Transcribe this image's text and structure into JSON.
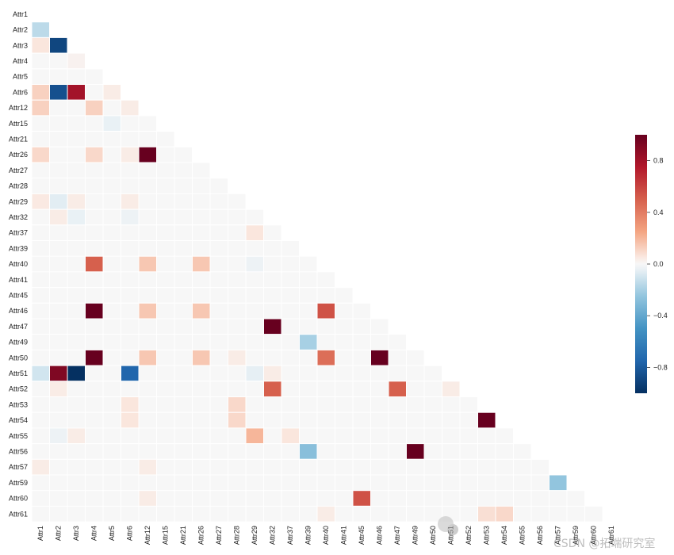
{
  "chart_data": {
    "type": "heatmap",
    "title": "",
    "xlabel": "",
    "ylabel": "",
    "variables": [
      "Attr1",
      "Attr2",
      "Attr3",
      "Attr4",
      "Attr5",
      "Attr6",
      "Attr12",
      "Attr15",
      "Attr21",
      "Attr26",
      "Attr27",
      "Attr28",
      "Attr29",
      "Attr32",
      "Attr37",
      "Attr39",
      "Attr40",
      "Attr41",
      "Attr45",
      "Attr46",
      "Attr47",
      "Attr49",
      "Attr50",
      "Attr51",
      "Attr52",
      "Attr53",
      "Attr54",
      "Attr55",
      "Attr56",
      "Attr57",
      "Attr59",
      "Attr60",
      "Attr61"
    ],
    "mask": "upper-triangle-including-diagonal",
    "colormap": "RdBu_r",
    "vmin": -1,
    "vmax": 1,
    "colorbar_ticks": [
      0.8,
      0.4,
      0.0,
      -0.4,
      -0.8
    ],
    "colorbar_tick_labels": [
      "0.8",
      "0.4",
      "0.0",
      "−0.4",
      "−0.8"
    ],
    "default_value": 0.0,
    "cells": [
      [
        "Attr2",
        "Attr1",
        -0.15
      ],
      [
        "Attr3",
        "Attr1",
        0.06
      ],
      [
        "Attr3",
        "Attr2",
        -0.9
      ],
      [
        "Attr3",
        "Attr4",
        0.02
      ],
      [
        "Attr6",
        "Attr1",
        0.12
      ],
      [
        "Attr6",
        "Attr2",
        -0.85
      ],
      [
        "Attr6",
        "Attr3",
        0.8
      ],
      [
        "Attr6",
        "Attr5",
        0.04
      ],
      [
        "Attr12",
        "Attr1",
        0.12
      ],
      [
        "Attr12",
        "Attr4",
        0.12
      ],
      [
        "Attr12",
        "Attr6",
        0.04
      ],
      [
        "Attr15",
        "Attr5",
        -0.04
      ],
      [
        "Attr26",
        "Attr1",
        0.1
      ],
      [
        "Attr26",
        "Attr4",
        0.1
      ],
      [
        "Attr26",
        "Attr6",
        0.04
      ],
      [
        "Attr26",
        "Attr12",
        1.0
      ],
      [
        "Attr29",
        "Attr1",
        0.05
      ],
      [
        "Attr29",
        "Attr2",
        -0.06
      ],
      [
        "Attr29",
        "Attr3",
        0.04
      ],
      [
        "Attr29",
        "Attr6",
        0.04
      ],
      [
        "Attr32",
        "Attr2",
        0.04
      ],
      [
        "Attr32",
        "Attr3",
        -0.04
      ],
      [
        "Attr32",
        "Attr6",
        -0.03
      ],
      [
        "Attr37",
        "Attr29",
        0.06
      ],
      [
        "Attr40",
        "Attr4",
        0.5
      ],
      [
        "Attr40",
        "Attr12",
        0.15
      ],
      [
        "Attr40",
        "Attr26",
        0.15
      ],
      [
        "Attr40",
        "Attr29",
        -0.03
      ],
      [
        "Attr46",
        "Attr4",
        1.0
      ],
      [
        "Attr46",
        "Attr12",
        0.15
      ],
      [
        "Attr46",
        "Attr26",
        0.15
      ],
      [
        "Attr46",
        "Attr40",
        0.55
      ],
      [
        "Attr47",
        "Attr32",
        1.0
      ],
      [
        "Attr49",
        "Attr39",
        -0.2
      ],
      [
        "Attr50",
        "Attr4",
        1.0
      ],
      [
        "Attr50",
        "Attr12",
        0.15
      ],
      [
        "Attr50",
        "Attr26",
        0.15
      ],
      [
        "Attr50",
        "Attr28",
        0.04
      ],
      [
        "Attr50",
        "Attr40",
        0.45
      ],
      [
        "Attr50",
        "Attr46",
        1.0
      ],
      [
        "Attr51",
        "Attr1",
        -0.1
      ],
      [
        "Attr51",
        "Attr2",
        0.92
      ],
      [
        "Attr51",
        "Attr3",
        -1.0
      ],
      [
        "Attr51",
        "Attr6",
        -0.75
      ],
      [
        "Attr51",
        "Attr29",
        -0.05
      ],
      [
        "Attr51",
        "Attr32",
        0.04
      ],
      [
        "Attr52",
        "Attr2",
        0.04
      ],
      [
        "Attr52",
        "Attr32",
        0.5
      ],
      [
        "Attr52",
        "Attr47",
        0.5
      ],
      [
        "Attr52",
        "Attr51",
        0.04
      ],
      [
        "Attr53",
        "Attr6",
        0.06
      ],
      [
        "Attr53",
        "Attr28",
        0.1
      ],
      [
        "Attr54",
        "Attr6",
        0.06
      ],
      [
        "Attr54",
        "Attr28",
        0.1
      ],
      [
        "Attr54",
        "Attr53",
        1.0
      ],
      [
        "Attr55",
        "Attr2",
        -0.03
      ],
      [
        "Attr55",
        "Attr3",
        0.04
      ],
      [
        "Attr55",
        "Attr29",
        0.2
      ],
      [
        "Attr55",
        "Attr37",
        0.06
      ],
      [
        "Attr56",
        "Attr39",
        -0.28
      ],
      [
        "Attr56",
        "Attr49",
        1.0
      ],
      [
        "Attr57",
        "Attr1",
        0.04
      ],
      [
        "Attr57",
        "Attr12",
        0.04
      ],
      [
        "Attr59",
        "Attr57",
        -0.25
      ],
      [
        "Attr60",
        "Attr12",
        0.04
      ],
      [
        "Attr60",
        "Attr45",
        0.55
      ],
      [
        "Attr61",
        "Attr40",
        0.04
      ],
      [
        "Attr61",
        "Attr53",
        0.08
      ],
      [
        "Attr61",
        "Attr54",
        0.1
      ]
    ]
  },
  "watermark": "CSDN @拓端研究室"
}
